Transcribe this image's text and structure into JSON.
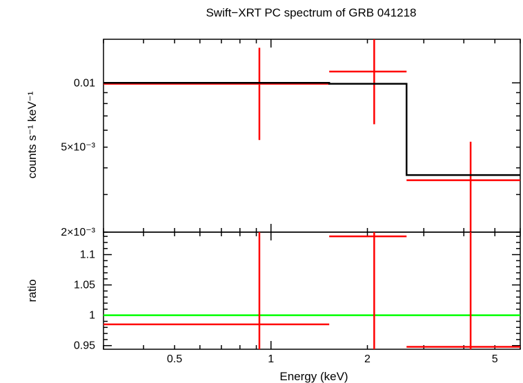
{
  "chart_data": {
    "type": "line",
    "title": "Swift−XRT PC spectrum of GRB 041218",
    "xlabel": "Energy (keV)",
    "x_scale": "log",
    "xlim": [
      0.3,
      6.0
    ],
    "x_tick_labels": [
      {
        "value": 0.5,
        "label": "0.5"
      },
      {
        "value": 1,
        "label": "1"
      },
      {
        "value": 2,
        "label": "2"
      },
      {
        "value": 5,
        "label": "5"
      }
    ],
    "panels": [
      {
        "id": "spectrum",
        "ylabel": "counts s⁻¹ keV⁻¹",
        "y_scale": "log",
        "ylim": [
          0.002,
          0.016
        ],
        "y_tick_labels": [
          {
            "value": 0.01,
            "label": "0.01"
          },
          {
            "value": 0.005,
            "label": "5×10⁻³"
          },
          {
            "value": 0.002,
            "label": "2×10⁻³"
          }
        ],
        "series": [
          {
            "kind": "data",
            "color": "#ff0000",
            "points": [
              {
                "x": 0.92,
                "xlo": 0.3,
                "xhi": 1.52,
                "y": 0.0099,
                "ylo": 0.0054,
                "yhi": 0.0146
              },
              {
                "x": 2.1,
                "xlo": 1.52,
                "xhi": 2.65,
                "y": 0.0113,
                "ylo": 0.0064,
                "yhi": 0.0165
              },
              {
                "x": 4.2,
                "xlo": 2.65,
                "xhi": 6.0,
                "y": 0.0035,
                "ylo": 0.0015,
                "yhi": 0.0053
              }
            ]
          },
          {
            "kind": "model",
            "color": "#000000",
            "steps": [
              {
                "xlo": 0.3,
                "xhi": 1.52,
                "y": 0.01
              },
              {
                "xlo": 1.52,
                "xhi": 2.65,
                "y": 0.0099
              },
              {
                "xlo": 2.65,
                "xhi": 6.0,
                "y": 0.0037
              }
            ]
          }
        ]
      },
      {
        "id": "ratio",
        "ylabel": "ratio",
        "y_scale": "linear",
        "ylim": [
          0.944,
          1.137
        ],
        "y_tick_labels": [
          {
            "value": 0.95,
            "label": "0.95"
          },
          {
            "value": 1,
            "label": "1"
          },
          {
            "value": 1.05,
            "label": "1.05"
          },
          {
            "value": 1.1,
            "label": "1.1"
          }
        ],
        "reference_line": {
          "y": 1,
          "color": "#00ff00"
        },
        "series": [
          {
            "kind": "data",
            "color": "#ff0000",
            "points": [
              {
                "x": 0.92,
                "xlo": 0.3,
                "xhi": 1.52,
                "y": 0.985,
                "ylo": 0.9,
                "yhi": 1.2
              },
              {
                "x": 2.1,
                "xlo": 1.52,
                "xhi": 2.65,
                "y": 1.13,
                "ylo": 0.9,
                "yhi": 1.2
              },
              {
                "x": 4.2,
                "xlo": 2.65,
                "xhi": 6.0,
                "y": 0.948,
                "ylo": 0.9,
                "yhi": 1.2
              }
            ]
          }
        ]
      }
    ]
  }
}
